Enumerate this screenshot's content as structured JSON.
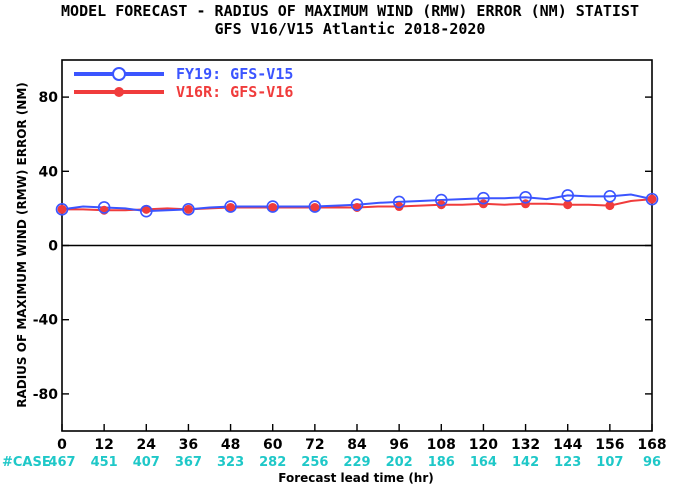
{
  "chart_data": {
    "type": "line",
    "title": "MODEL FORECAST - RADIUS OF MAXIMUM WIND (RMW) ERROR (NM) STATIST",
    "subtitle": "GFS V16/V15 Atlantic 2018-2020",
    "xlabel": "Forecast lead time (hr)",
    "ylabel": "RADIUS OF MAXIMUM WIND (RMW) ERROR (NM)",
    "xlim": [
      0,
      168
    ],
    "ylim": [
      -100,
      100
    ],
    "x_ticks": [
      0,
      12,
      24,
      36,
      48,
      60,
      72,
      84,
      96,
      108,
      120,
      132,
      144,
      156,
      168
    ],
    "y_ticks": [
      -80,
      -40,
      0,
      40,
      80
    ],
    "y_tick_labels": [
      "-80",
      "-40",
      "0",
      "40",
      "80"
    ],
    "legend_position": "top-left",
    "case_label": "#CASE",
    "case_counts": [
      "467",
      "451",
      "407",
      "367",
      "323",
      "282",
      "256",
      "229",
      "202",
      "186",
      "164",
      "142",
      "123",
      "107",
      "96"
    ],
    "series": [
      {
        "name": "FY19: GFS-V15",
        "color": "#3b55ff",
        "marker": "open-circle",
        "x": [
          0,
          6,
          12,
          18,
          24,
          30,
          36,
          42,
          48,
          54,
          60,
          66,
          72,
          78,
          84,
          90,
          96,
          102,
          108,
          114,
          120,
          126,
          132,
          138,
          144,
          150,
          156,
          162,
          168
        ],
        "values": [
          19.5,
          21,
          20.5,
          20,
          18.5,
          19,
          19.5,
          20.5,
          21,
          21,
          21,
          21,
          21,
          21.5,
          22,
          23,
          23.5,
          24,
          24.5,
          25,
          25.5,
          25.5,
          26,
          25,
          27,
          26.5,
          26.5,
          27.5,
          25
        ]
      },
      {
        "name": "V16R: GFS-V16",
        "color": "#f03c3c",
        "marker": "filled-circle",
        "x": [
          0,
          6,
          12,
          18,
          24,
          30,
          36,
          42,
          48,
          54,
          60,
          66,
          72,
          78,
          84,
          90,
          96,
          102,
          108,
          114,
          120,
          126,
          132,
          138,
          144,
          150,
          156,
          162,
          168
        ],
        "values": [
          19.5,
          19.5,
          19,
          19,
          19.5,
          20,
          19.5,
          20,
          20.5,
          20.5,
          20.5,
          20.5,
          20.5,
          20.5,
          20.5,
          21,
          21,
          21.5,
          22,
          22,
          22.5,
          22,
          22.5,
          22.5,
          22,
          22,
          21.5,
          24,
          25
        ]
      }
    ]
  }
}
